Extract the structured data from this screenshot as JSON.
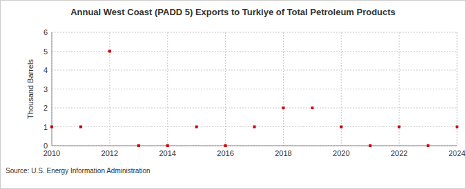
{
  "chart_data": {
    "type": "scatter",
    "title": "Annual West Coast (PADD 5) Exports to Turkiye of Total Petroleum Products",
    "y_label": "Thousand Barrels",
    "source": "Source: U.S. Energy Information Administration",
    "x": [
      2010,
      2011,
      2012,
      2013,
      2014,
      2015,
      2016,
      2017,
      2018,
      2019,
      2020,
      2021,
      2022,
      2023,
      2024
    ],
    "values": [
      1,
      1,
      5,
      0,
      0,
      1,
      0,
      1,
      2,
      2,
      1,
      0,
      1,
      0,
      1
    ],
    "color": "#cc0000",
    "marker": "square",
    "xlim": [
      2010,
      2024
    ],
    "xticks": [
      2010,
      2012,
      2014,
      2016,
      2018,
      2020,
      2022,
      2024
    ],
    "ylim": [
      0,
      6
    ],
    "yticks": [
      0,
      1,
      2,
      3,
      4,
      5,
      6
    ],
    "grid": true
  }
}
